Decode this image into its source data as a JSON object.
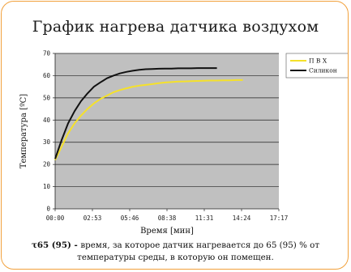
{
  "chart_data": {
    "type": "line",
    "title": "График нагрева датчика воздухом",
    "xlabel": "Время [мин]",
    "ylabel": "Температура [ºC]",
    "xlim": [
      0,
      1037
    ],
    "ylim": [
      0,
      70
    ],
    "x_ticks": [
      "00:00",
      "02:53",
      "05:46",
      "08:38",
      "11:31",
      "14:24",
      "17:17"
    ],
    "y_ticks": [
      "0",
      "10",
      "20",
      "30",
      "40",
      "50",
      "60",
      "70"
    ],
    "grid": true,
    "legend": "right",
    "series": [
      {
        "name": "П В Х",
        "color": "#f5e12a",
        "x": [
          0,
          30,
          60,
          90,
          120,
          150,
          180,
          210,
          240,
          270,
          300,
          330,
          360,
          390,
          420,
          450,
          480,
          510,
          540,
          570,
          600,
          630,
          660,
          690,
          720,
          750,
          780,
          810,
          840,
          870
        ],
        "y": [
          22,
          28,
          34,
          38.5,
          42,
          45,
          47.5,
          49.5,
          51,
          52.5,
          53.5,
          54.3,
          55,
          55.5,
          55.8,
          56.2,
          56.6,
          56.9,
          57.1,
          57.3,
          57.4,
          57.5,
          57.6,
          57.7,
          57.8,
          57.8,
          57.9,
          57.9,
          58,
          58
        ]
      },
      {
        "name": "Силикон",
        "color": "#111111",
        "x": [
          0,
          30,
          60,
          90,
          120,
          150,
          180,
          210,
          240,
          270,
          300,
          330,
          360,
          390,
          420,
          450,
          480,
          510,
          540,
          570,
          600,
          630,
          660,
          690,
          720,
          750
        ],
        "y": [
          22.5,
          31,
          38.5,
          44,
          48.5,
          52,
          55,
          57,
          58.8,
          60,
          61,
          61.7,
          62.2,
          62.6,
          62.9,
          63,
          63.1,
          63.2,
          63.2,
          63.3,
          63.3,
          63.3,
          63.4,
          63.4,
          63.4,
          63.4
        ]
      }
    ]
  },
  "caption": {
    "symbol": "τ65 (95) - ",
    "text": "время, за которое датчик нагревается до 65 (95) % от температуры среды, в которую он помещен."
  }
}
